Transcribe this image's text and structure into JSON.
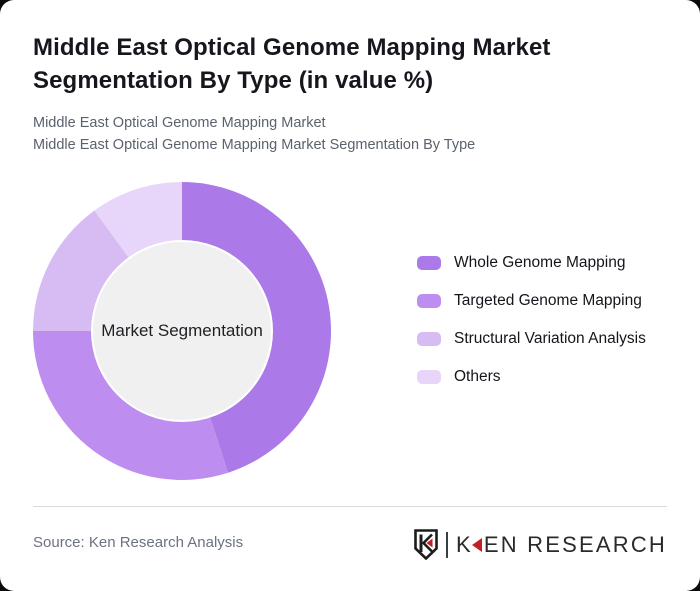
{
  "window": {
    "background": "#0a0a0a",
    "card_background": "#ffffff"
  },
  "header": {
    "title": "Middle East Optical Genome Mapping Market Segmentation By Type (in value %)",
    "subtitle_line1": "Middle East Optical Genome Mapping Market",
    "subtitle_line2": "Middle East Optical Genome Mapping Market Segmentation By Type"
  },
  "chart_data": {
    "type": "pie",
    "subtype": "donut",
    "title": "Middle East Optical Genome Mapping Market Segmentation By Type (in value %)",
    "units": "value %",
    "center_label": "Market Segmentation",
    "center_fill": "#f0f0f1",
    "start_angle_deg_from_top": 0,
    "direction": "clockwise",
    "legend_position": "right",
    "outer_radius_px": 149,
    "inner_radius_px": 90,
    "series": [
      {
        "name": "Whole Genome Mapping",
        "value": 45,
        "color": "#ab79e8"
      },
      {
        "name": "Targeted Genome Mapping",
        "value": 30,
        "color": "#bd8def"
      },
      {
        "name": "Structural Variation Analysis",
        "value": 15,
        "color": "#d7bcf3"
      },
      {
        "name": "Others",
        "value": 10,
        "color": "#e7d5fa"
      }
    ]
  },
  "footer": {
    "source": "Source: Ken Research Analysis",
    "logo": {
      "brand_initial": "K",
      "brand_rest": "EN RESEARCH",
      "accent_color": "#c51f26",
      "ink_color": "#1c1c1c"
    }
  }
}
